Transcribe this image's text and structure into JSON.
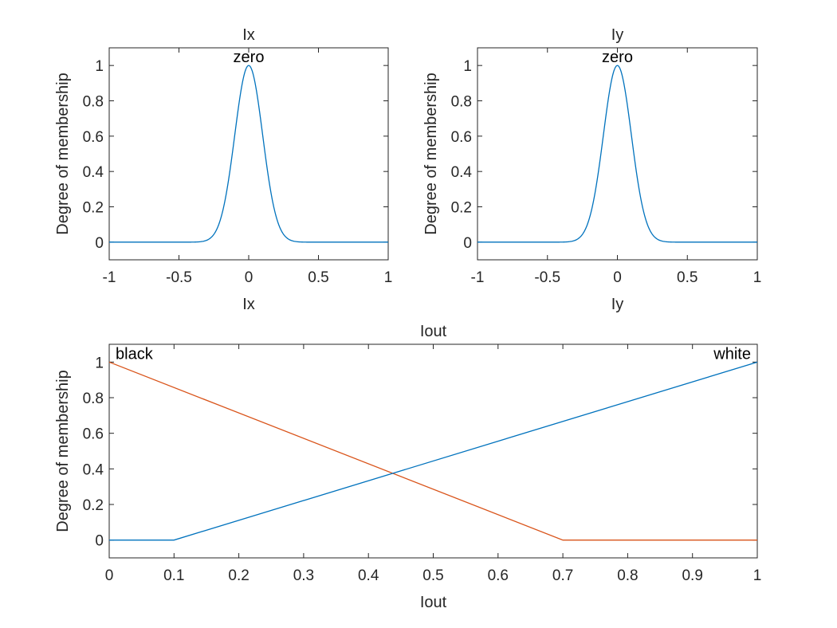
{
  "chart_data": [
    {
      "type": "line",
      "title": "Ix",
      "xlabel": "Ix",
      "ylabel": "Degree of membership",
      "xlim": [
        -1,
        1
      ],
      "ylim": [
        -0.1,
        1.1
      ],
      "xticks": [
        -1,
        -0.5,
        0,
        0.5,
        1
      ],
      "xtick_labels": [
        "-1",
        "-0.5",
        "0",
        "0.5",
        "1"
      ],
      "yticks": [
        0,
        0.2,
        0.4,
        0.6,
        0.8,
        1
      ],
      "ytick_labels": [
        "0",
        "0.2",
        "0.4",
        "0.6",
        "0.8",
        "1"
      ],
      "grid": false,
      "series": [
        {
          "name": "zero",
          "shape": "gaussian",
          "params": {
            "sigma": 0.1,
            "mean": 0
          },
          "peak_x": 0,
          "color": "#0072BD"
        }
      ]
    },
    {
      "type": "line",
      "title": "Iy",
      "xlabel": "Iy",
      "ylabel": "Degree of membership",
      "xlim": [
        -1,
        1
      ],
      "ylim": [
        -0.1,
        1.1
      ],
      "xticks": [
        -1,
        -0.5,
        0,
        0.5,
        1
      ],
      "xtick_labels": [
        "-1",
        "-0.5",
        "0",
        "0.5",
        "1"
      ],
      "yticks": [
        0,
        0.2,
        0.4,
        0.6,
        0.8,
        1
      ],
      "ytick_labels": [
        "0",
        "0.2",
        "0.4",
        "0.6",
        "0.8",
        "1"
      ],
      "grid": false,
      "series": [
        {
          "name": "zero",
          "shape": "gaussian",
          "params": {
            "sigma": 0.1,
            "mean": 0
          },
          "peak_x": 0,
          "color": "#0072BD"
        }
      ]
    },
    {
      "type": "line",
      "title": "Iout",
      "xlabel": "Iout",
      "ylabel": "Degree of membership",
      "xlim": [
        0,
        1
      ],
      "ylim": [
        -0.1,
        1.1
      ],
      "xticks": [
        0,
        0.1,
        0.2,
        0.3,
        0.4,
        0.5,
        0.6,
        0.7,
        0.8,
        0.9,
        1
      ],
      "xtick_labels": [
        "0",
        "0.1",
        "0.2",
        "0.3",
        "0.4",
        "0.5",
        "0.6",
        "0.7",
        "0.8",
        "0.9",
        "1"
      ],
      "yticks": [
        0,
        0.2,
        0.4,
        0.6,
        0.8,
        1
      ],
      "ytick_labels": [
        "0",
        "0.2",
        "0.4",
        "0.6",
        "0.8",
        "1"
      ],
      "grid": false,
      "series": [
        {
          "name": "black",
          "shape": "piecewise",
          "x": [
            0,
            0.7,
            1
          ],
          "y": [
            1,
            0,
            0
          ],
          "peak_x": 0,
          "color": "#D95319"
        },
        {
          "name": "white",
          "shape": "piecewise",
          "x": [
            0,
            0.1,
            1
          ],
          "y": [
            0,
            0,
            1
          ],
          "peak_x": 1,
          "color": "#0072BD"
        }
      ]
    }
  ]
}
